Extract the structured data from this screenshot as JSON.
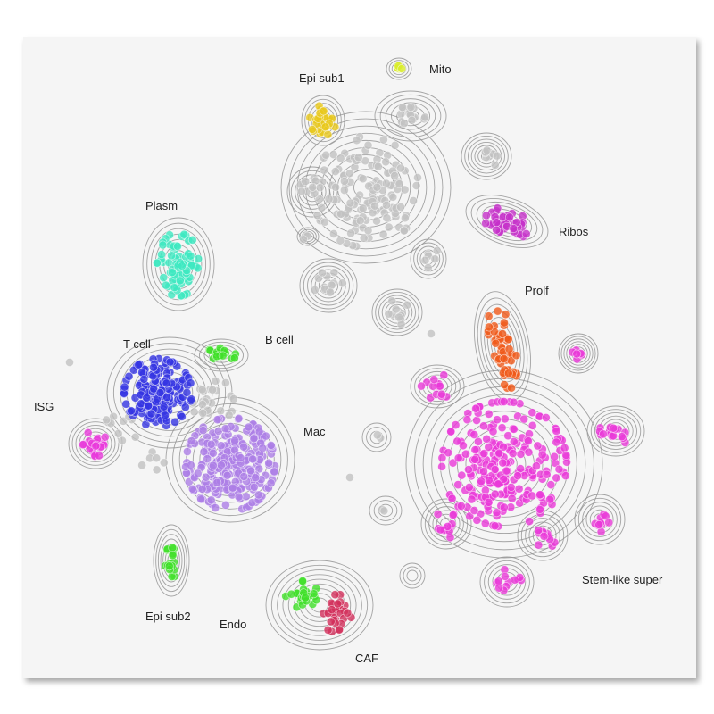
{
  "chart_data": {
    "type": "scatter",
    "title": "",
    "xlabel": "",
    "ylabel": "",
    "legend": "none",
    "grid": false,
    "density_contours": true,
    "clusters": [
      {
        "name": "Epi sub1",
        "color": "#e8c81c",
        "center": [
          362,
          135
        ],
        "spread": [
          15,
          17
        ],
        "n": 28
      },
      {
        "name": "Mito",
        "color": "#d9ec2a",
        "center": [
          447,
          77
        ],
        "spread": [
          4,
          3
        ],
        "n": 6
      },
      {
        "name": "Plasm",
        "color": "#3de8c0",
        "center": [
          200,
          296
        ],
        "spread": [
          24,
          36
        ],
        "n": 75
      },
      {
        "name": "Ribos",
        "color": "#c531c9",
        "center": [
          568,
          248
        ],
        "spread": [
          32,
          14
        ],
        "n": 45,
        "angle": 20
      },
      {
        "name": "Prolf",
        "color": "#f05a1a",
        "center": [
          563,
          388
        ],
        "spread": [
          14,
          48
        ],
        "n": 50,
        "angle": -10
      },
      {
        "name": "T cell",
        "color": "#3434e2",
        "center": [
          177,
          440
        ],
        "spread": [
          38,
          38
        ],
        "n": 190
      },
      {
        "name": "B cell",
        "color": "#3ee028",
        "center": [
          248,
          398
        ],
        "spread": [
          20,
          8
        ],
        "n": 18
      },
      {
        "name": "ISG",
        "color": "#e93adb",
        "center": [
          107,
          497
        ],
        "spread": [
          14,
          15
        ],
        "n": 25
      },
      {
        "name": "Mac",
        "color": "#ad7ee6",
        "center": [
          258,
          520
        ],
        "spread": [
          50,
          52
        ],
        "n": 260
      },
      {
        "name": "Epi sub2",
        "color": "#3ee028",
        "center": [
          192,
          630
        ],
        "spread": [
          7,
          19
        ],
        "n": 16
      },
      {
        "name": "Endo",
        "color": "#3ee028",
        "center": [
          338,
          666
        ],
        "spread": [
          18,
          15
        ],
        "n": 24
      },
      {
        "name": "CAF",
        "color": "#d2305b",
        "center": [
          378,
          688
        ],
        "spread": [
          18,
          22
        ],
        "n": 30
      },
      {
        "name": "Stem-like super",
        "color": "#ea3ad8",
        "center": [
          565,
          520
        ],
        "spread": [
          70,
          70
        ],
        "n": 240
      }
    ],
    "unlabeled_points_color": "#c2c2c2",
    "labels": [
      "Epi sub1",
      "Mito",
      "Plasm",
      "Ribos",
      "Prolf",
      "T cell",
      "B cell",
      "ISG",
      "Mac",
      "Epi sub2",
      "Endo",
      "CAF",
      "Stem-like super"
    ]
  }
}
